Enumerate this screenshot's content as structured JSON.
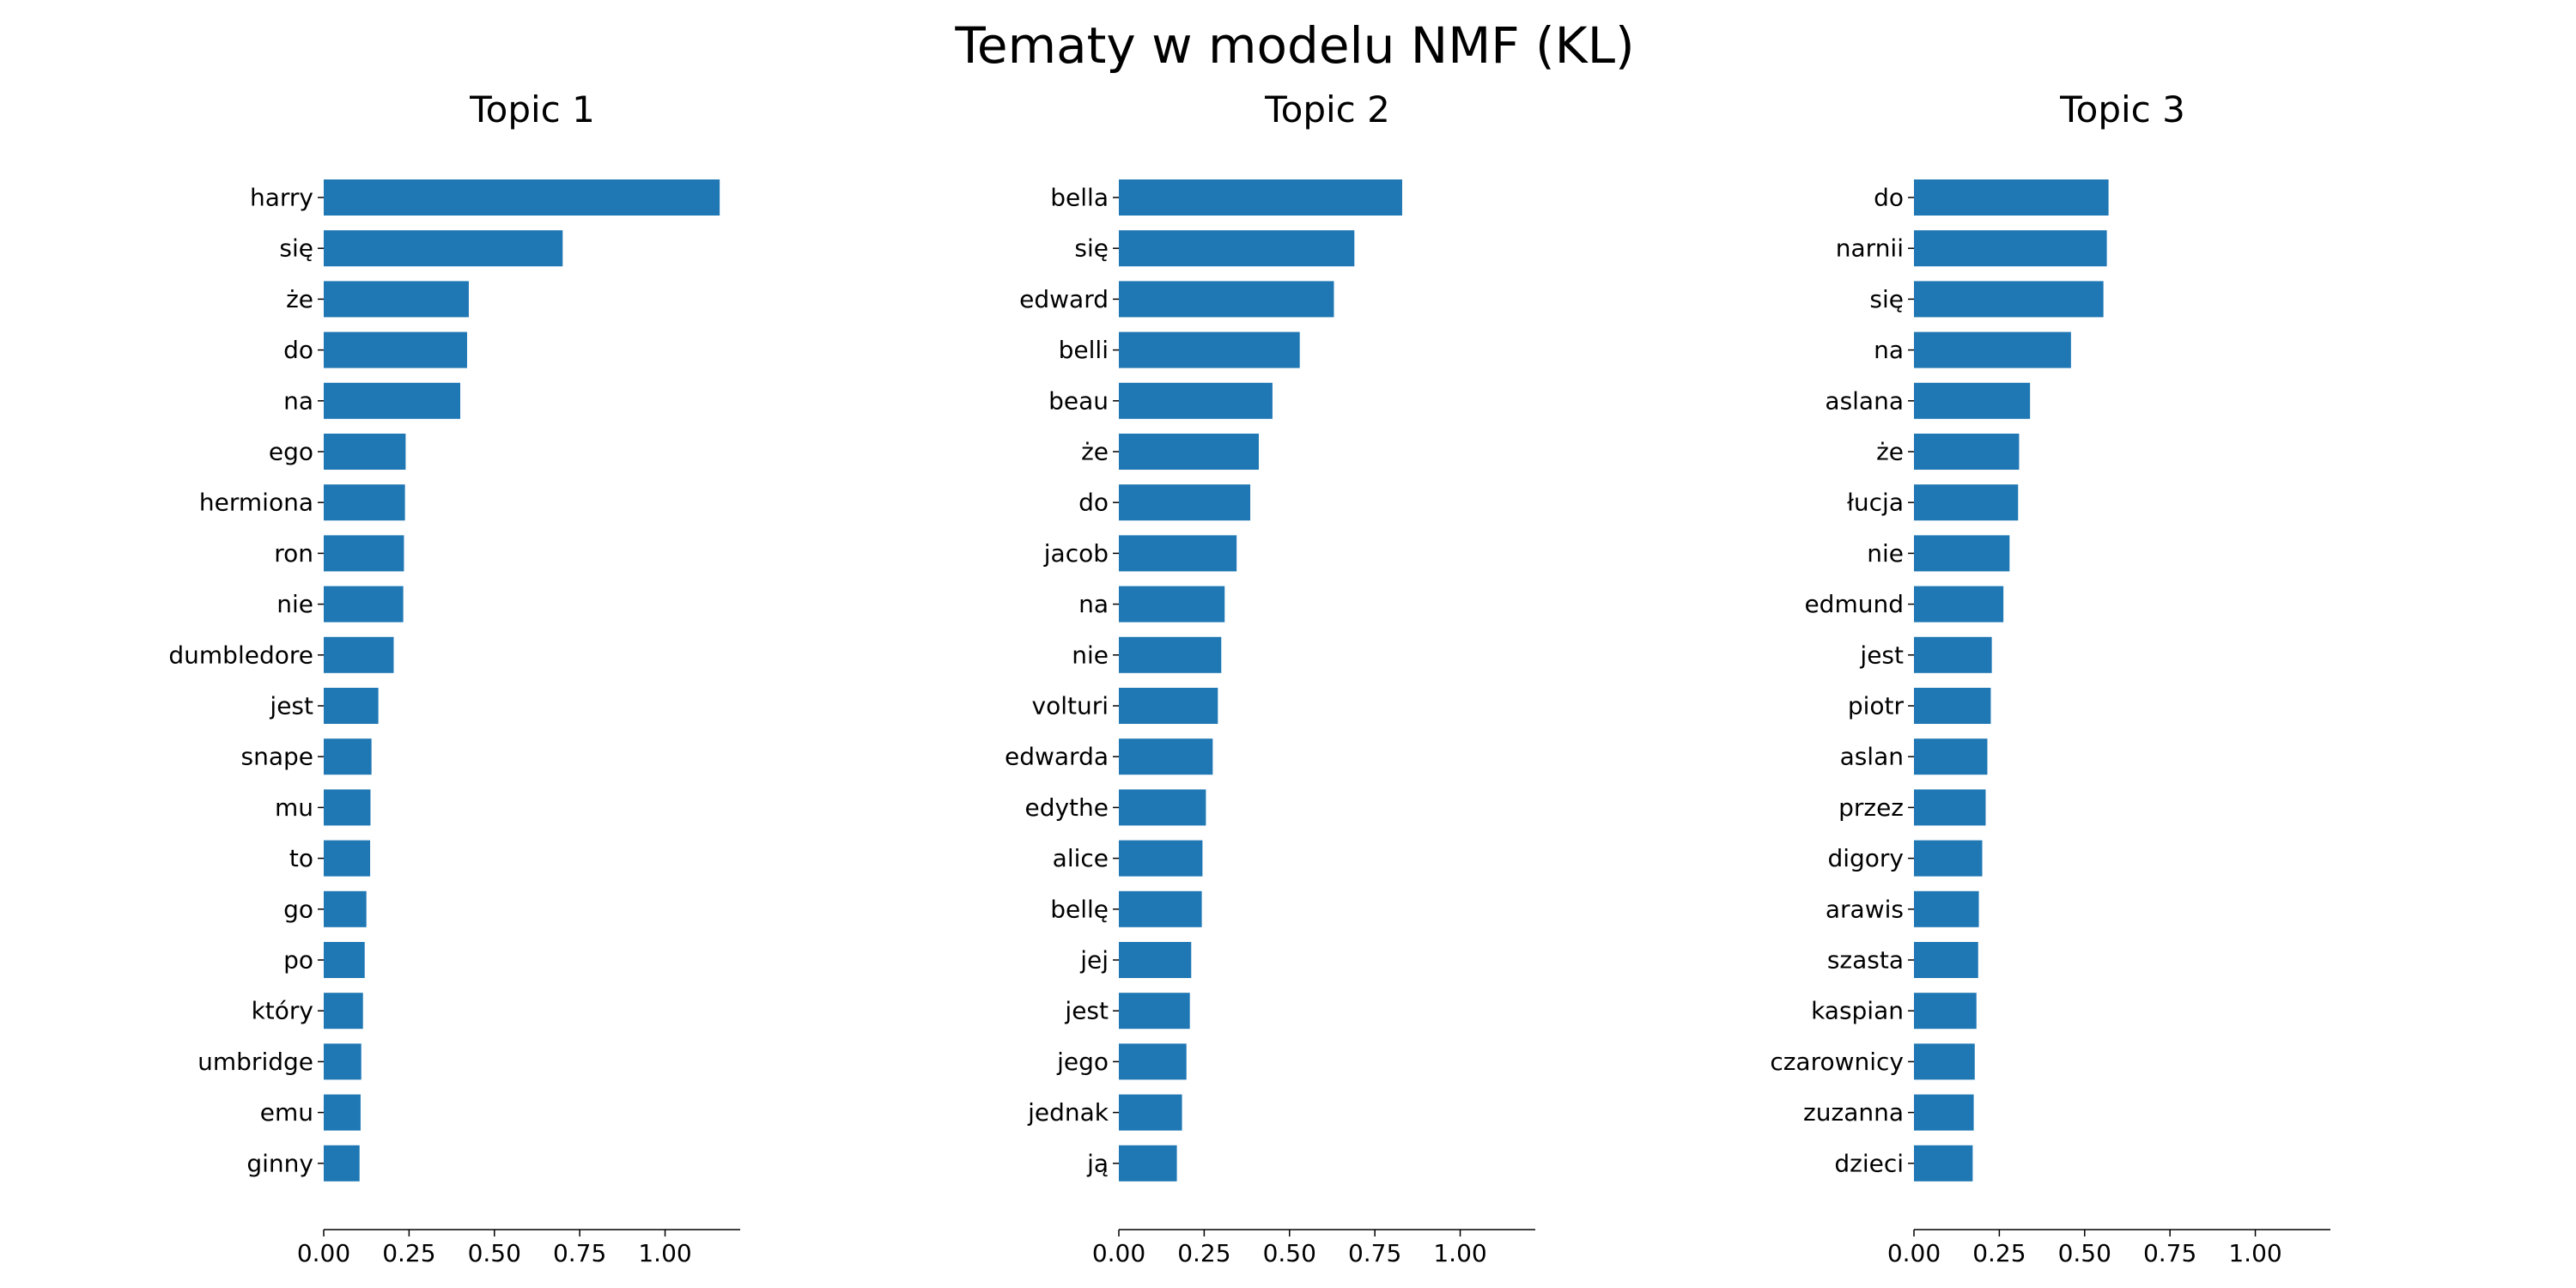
{
  "chart_data": {
    "type": "bar",
    "orientation": "horizontal",
    "title": "Tematy w modelu NMF (KL)",
    "bar_color": "#1f77b4",
    "xlim": [
      0,
      1.22
    ],
    "xticks": [
      0,
      0.25,
      0.5,
      0.75,
      1.0
    ],
    "xtick_labels": [
      "0.00",
      "0.25",
      "0.50",
      "0.75",
      "1.00"
    ],
    "grid": false,
    "subplots": [
      {
        "title": "Topic 1",
        "terms": [
          "harry",
          "się",
          "że",
          "do",
          "na",
          "ego",
          "hermiona",
          "ron",
          "nie",
          "dumbledore",
          "jest",
          "snape",
          "mu",
          "to",
          "go",
          "po",
          "który",
          "umbridge",
          "emu",
          "ginny"
        ],
        "values": [
          1.16,
          0.7,
          0.425,
          0.42,
          0.4,
          0.24,
          0.238,
          0.235,
          0.233,
          0.205,
          0.16,
          0.14,
          0.137,
          0.136,
          0.125,
          0.12,
          0.115,
          0.11,
          0.108,
          0.105
        ]
      },
      {
        "title": "Topic 2",
        "terms": [
          "bella",
          "się",
          "edward",
          "belli",
          "beau",
          "że",
          "do",
          "jacob",
          "na",
          "nie",
          "volturi",
          "edwarda",
          "edythe",
          "alice",
          "bellę",
          "jej",
          "jest",
          "jego",
          "jednak",
          "ją"
        ],
        "values": [
          0.83,
          0.69,
          0.63,
          0.53,
          0.45,
          0.41,
          0.385,
          0.345,
          0.31,
          0.3,
          0.29,
          0.275,
          0.255,
          0.245,
          0.243,
          0.212,
          0.208,
          0.198,
          0.185,
          0.17
        ]
      },
      {
        "title": "Topic 3",
        "terms": [
          "do",
          "narnii",
          "się",
          "na",
          "aslana",
          "że",
          "łucja",
          "nie",
          "edmund",
          "jest",
          "piotr",
          "aslan",
          "przez",
          "digory",
          "arawis",
          "szasta",
          "kaspian",
          "czarownicy",
          "zuzanna",
          "dzieci"
        ],
        "values": [
          0.57,
          0.565,
          0.555,
          0.46,
          0.34,
          0.308,
          0.305,
          0.28,
          0.262,
          0.228,
          0.225,
          0.215,
          0.21,
          0.2,
          0.19,
          0.188,
          0.183,
          0.178,
          0.175,
          0.172
        ]
      }
    ]
  }
}
